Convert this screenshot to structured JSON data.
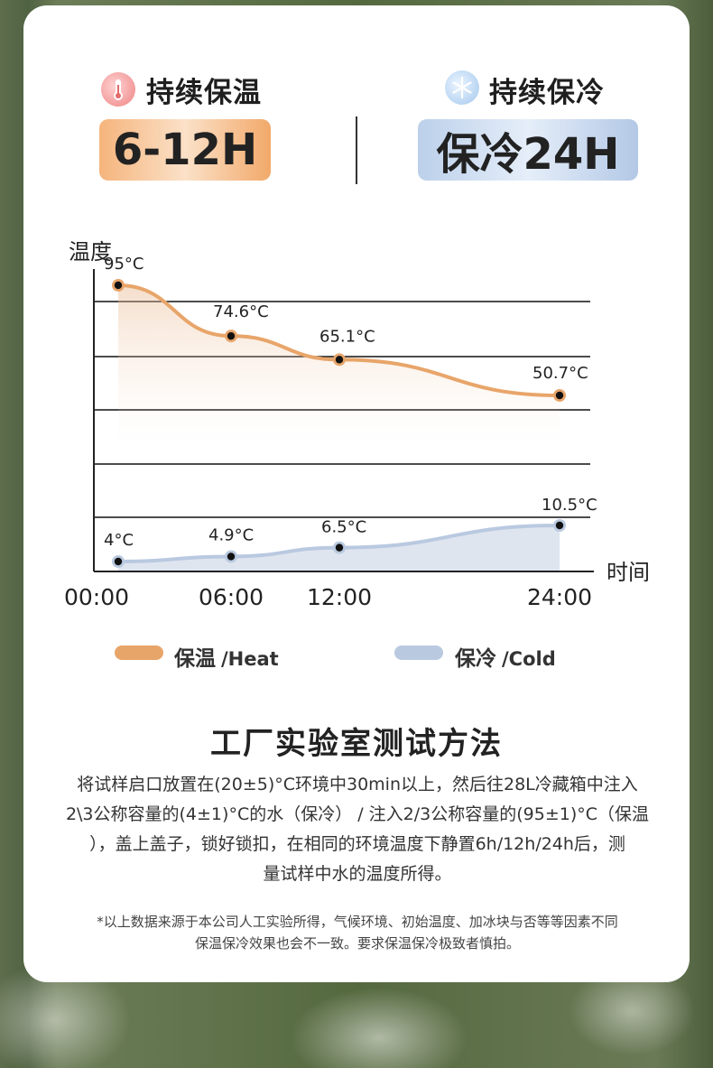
{
  "header": {
    "heat_title": "持续保温",
    "heat_value": "6-12H",
    "cold_title": "持续保冷",
    "cold_value": "保冷24H",
    "heat_icon": "thermometer-icon",
    "cold_icon": "snowflake-icon"
  },
  "chart_data": {
    "type": "line",
    "ylabel": "温度",
    "xlabel": "时间",
    "categories": [
      "00:00",
      "06:00",
      "12:00",
      "24:00"
    ],
    "x_hours": [
      0,
      6,
      12,
      24
    ],
    "series": [
      {
        "name": "保温",
        "values": [
          95,
          74.6,
          65.1,
          50.7
        ],
        "labels": [
          "95°C",
          "74.6°C",
          "65.1°C",
          "50.7°C"
        ],
        "color": "#e8a56a"
      },
      {
        "name": "保冷",
        "values": [
          4,
          4.9,
          6.5,
          10.5
        ],
        "labels": [
          "4°C",
          "4.9°C",
          "6.5°C",
          "10.5°C"
        ],
        "color": "#b9c9e0"
      }
    ],
    "grid": true
  },
  "legend": {
    "heat_cn": "保温",
    "heat_en": "/Heat",
    "cold_cn": "保冷",
    "cold_en": "/Cold"
  },
  "section": {
    "title": "工厂实验室测试方法",
    "method_lines": [
      "将试样启口放置在(20±5)°C环境中30min以上，然后往28L冷藏箱中注入",
      "2\\3公称容量的(4±1)°C的水（保冷） / 注入2/3公称容量的(95±1)°C（保温",
      "），盖上盖子，锁好锁扣，在相同的环境温度下静置6h/12h/24h后，测",
      "量试样中水的温度所得。"
    ],
    "note_lines": [
      "*以上数据来源于本公司人工实验所得，气候环境、初始温度、加冰块与否等等因素不同",
      "保温保冷效果也会不一致。要求保温保冷极致者慎拍。"
    ]
  },
  "colors": {
    "heat": "#e8a56a",
    "cold": "#b9c9e0",
    "heat_pill": "#f5b47c",
    "cold_pill": "#bcd0ea"
  }
}
